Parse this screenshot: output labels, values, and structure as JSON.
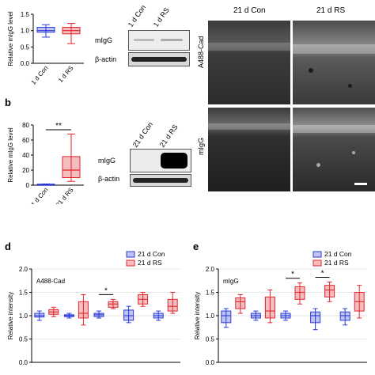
{
  "panels": {
    "b": "b",
    "d": "d",
    "e": "e"
  },
  "panel_a": {
    "chart_data": {
      "type": "box",
      "categories": [
        "1 d Con",
        "1 d RS"
      ],
      "ylabel": "Relative mIgG level",
      "ylim": [
        0.0,
        1.5
      ],
      "yticks": [
        "0.0",
        "0.5",
        "1.0",
        "1.5"
      ],
      "series": [
        {
          "name": "1 d Con",
          "color": "#2b3bd6",
          "min": 0.8,
          "q1": 0.95,
          "median": 1.0,
          "q3": 1.1,
          "max": 1.18
        },
        {
          "name": "1 d RS",
          "color": "#e0262b",
          "min": 0.6,
          "q1": 0.9,
          "median": 1.0,
          "q3": 1.1,
          "max": 1.22
        }
      ]
    },
    "blot_labels": [
      "1 d Con",
      "1 d RS"
    ],
    "blot_rows": [
      "mIgG",
      "β-actin"
    ]
  },
  "panel_b": {
    "chart_data": {
      "type": "box",
      "categories": [
        "21 d Con",
        "21 d RS"
      ],
      "ylabel": "Relative mIgG level",
      "ylim": [
        0,
        80
      ],
      "yticks": [
        "0",
        "20",
        "40",
        "60",
        "80"
      ],
      "significance": "**",
      "series": [
        {
          "name": "21 d Con",
          "color": "#2b3bd6",
          "min": 0.5,
          "q1": 0.8,
          "median": 1.0,
          "q3": 1.3,
          "max": 1.6
        },
        {
          "name": "21 d RS",
          "color": "#e0262b",
          "min": 5,
          "q1": 10,
          "median": 20,
          "q3": 38,
          "max": 68
        }
      ]
    },
    "blot_labels": [
      "21 d Con",
      "21 d RS"
    ],
    "blot_rows": [
      "mIgG",
      "β-actin"
    ]
  },
  "images": {
    "col_labels": [
      "21 d Con",
      "21 d RS"
    ],
    "row_labels": [
      "A488-Cad",
      "mIgG"
    ]
  },
  "panel_d": {
    "chart_data": {
      "type": "box",
      "title": "A488-Cad",
      "ylabel": "Relative intensity",
      "ylim": [
        0.0,
        2.0
      ],
      "yticks": [
        "0.0",
        "0.5",
        "1.0",
        "1.5",
        "2.0"
      ],
      "legend": [
        "21 d Con",
        "21 d RS"
      ],
      "colors": [
        "#2b3bd6",
        "#e0262b"
      ],
      "groups": [
        {
          "con": [
            0.9,
            0.97,
            1.0,
            1.05,
            1.1
          ],
          "rs": [
            0.98,
            1.03,
            1.08,
            1.13,
            1.18
          ],
          "sig": ""
        },
        {
          "con": [
            0.95,
            0.98,
            1.0,
            1.02,
            1.05
          ],
          "rs": [
            0.8,
            0.95,
            1.05,
            1.3,
            1.45
          ],
          "sig": ""
        },
        {
          "con": [
            0.95,
            0.98,
            1.02,
            1.05,
            1.1
          ],
          "rs": [
            1.15,
            1.18,
            1.25,
            1.3,
            1.35
          ],
          "sig": "*"
        },
        {
          "con": [
            0.85,
            0.9,
            1.0,
            1.12,
            1.2
          ],
          "rs": [
            1.2,
            1.25,
            1.35,
            1.45,
            1.5
          ],
          "sig": ""
        },
        {
          "con": [
            0.9,
            0.95,
            1.0,
            1.05,
            1.1
          ],
          "rs": [
            1.05,
            1.1,
            1.2,
            1.35,
            1.5
          ],
          "sig": ""
        }
      ]
    }
  },
  "panel_e": {
    "chart_data": {
      "type": "box",
      "title": "mIgG",
      "ylabel": "Relative intensity",
      "ylim": [
        0.0,
        2.0
      ],
      "yticks": [
        "0.0",
        "0.5",
        "1.0",
        "1.5",
        "2.0"
      ],
      "legend": [
        "21 d Con",
        "21 d RS"
      ],
      "colors": [
        "#2b3bd6",
        "#e0262b"
      ],
      "groups": [
        {
          "con": [
            0.75,
            0.85,
            1.0,
            1.1,
            1.15
          ],
          "rs": [
            1.05,
            1.15,
            1.3,
            1.38,
            1.45
          ],
          "sig": ""
        },
        {
          "con": [
            0.9,
            0.95,
            1.0,
            1.05,
            1.1
          ],
          "rs": [
            0.85,
            0.95,
            1.1,
            1.4,
            1.55
          ],
          "sig": ""
        },
        {
          "con": [
            0.9,
            0.95,
            1.0,
            1.05,
            1.1
          ],
          "rs": [
            1.25,
            1.35,
            1.5,
            1.62,
            1.7
          ],
          "sig": "*"
        },
        {
          "con": [
            0.7,
            0.85,
            1.0,
            1.08,
            1.15
          ],
          "rs": [
            1.3,
            1.4,
            1.55,
            1.65,
            1.72
          ],
          "sig": "*"
        },
        {
          "con": [
            0.8,
            0.9,
            1.0,
            1.08,
            1.15
          ],
          "rs": [
            0.95,
            1.1,
            1.3,
            1.5,
            1.65
          ],
          "sig": ""
        }
      ]
    }
  }
}
